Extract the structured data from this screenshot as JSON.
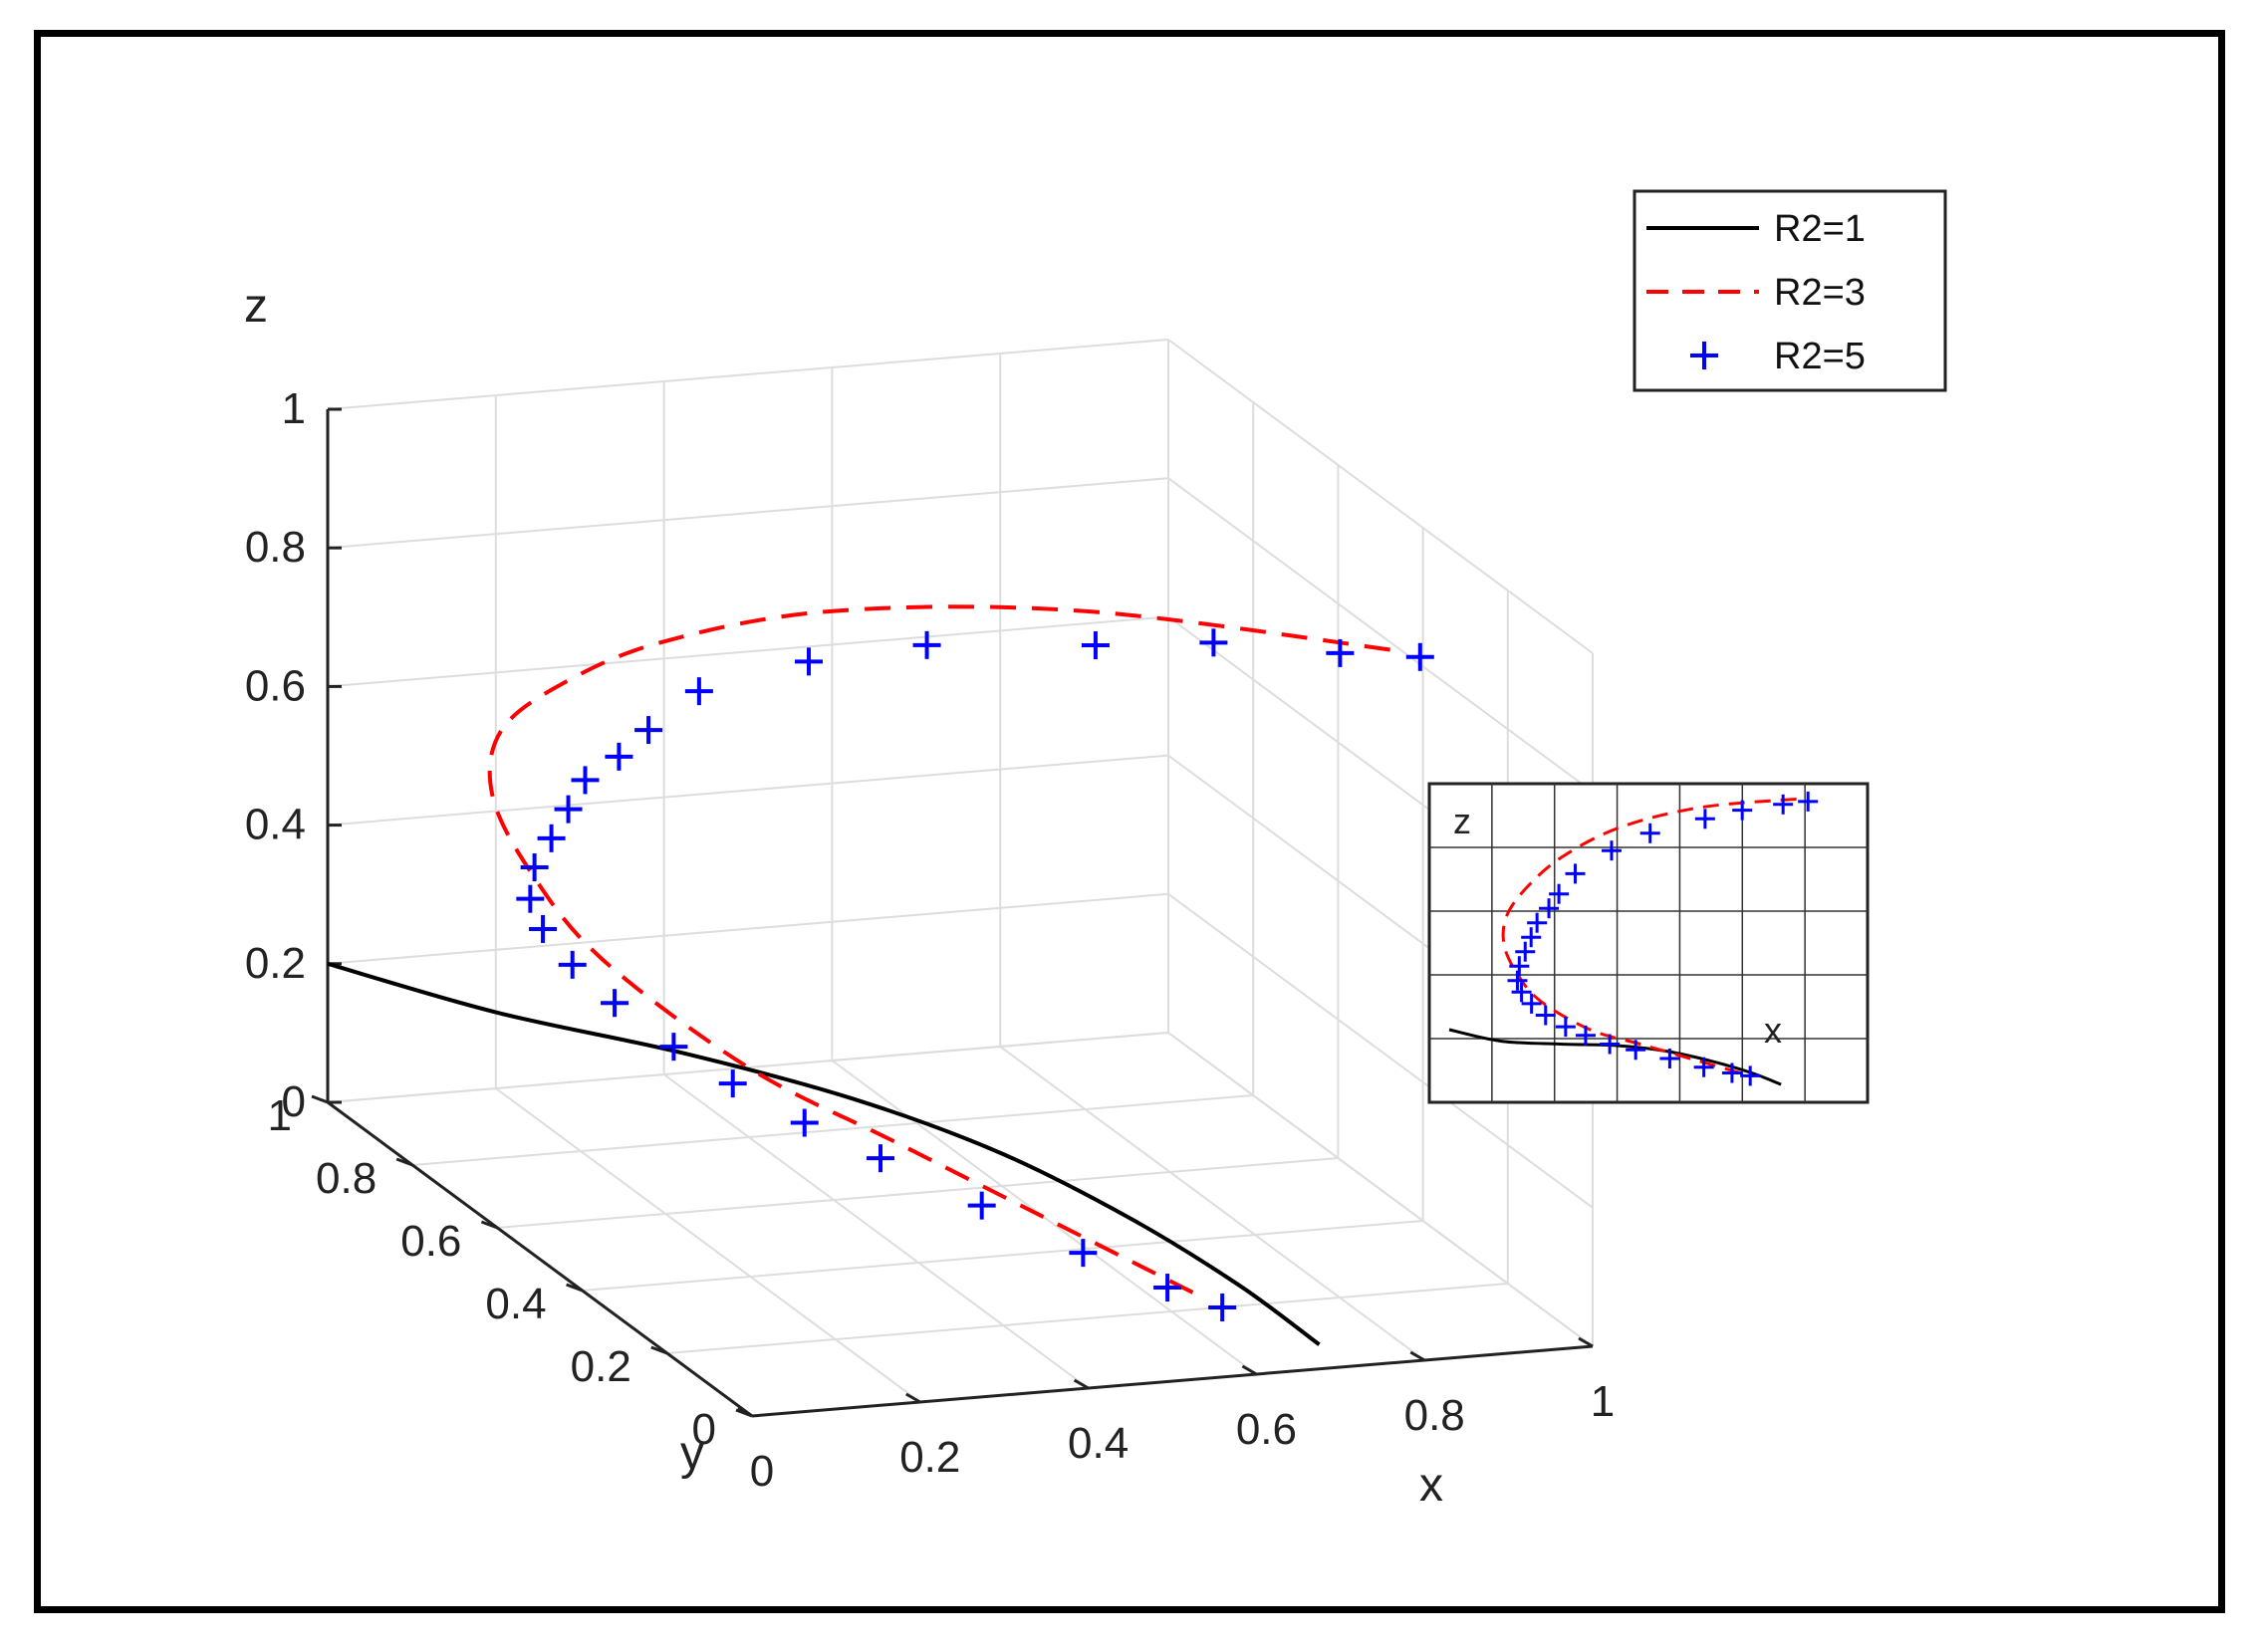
{
  "chart_data": {
    "type": "line3d",
    "title": "",
    "xlabel": "x",
    "ylabel": "y",
    "zlabel": "z",
    "xlim": [
      0,
      1
    ],
    "ylim": [
      0,
      1
    ],
    "zlim": [
      0,
      1
    ],
    "x_ticks": [
      "0",
      "0.2",
      "0.4",
      "0.6",
      "0.8",
      "1"
    ],
    "y_ticks": [
      "0",
      "0.2",
      "0.4",
      "0.6",
      "0.8",
      "1"
    ],
    "z_ticks": [
      "0",
      "0.2",
      "0.4",
      "0.6",
      "0.8",
      "1"
    ],
    "grid": true,
    "legend_position": "top-right",
    "series": [
      {
        "name": "R2=1",
        "style": "solid",
        "color": "#000000",
        "points": [
          [
            0.0,
            1.0,
            0.2
          ],
          [
            0.15,
            0.9,
            0.16
          ],
          [
            0.3,
            0.76,
            0.15
          ],
          [
            0.42,
            0.6,
            0.145
          ],
          [
            0.52,
            0.45,
            0.125
          ],
          [
            0.6,
            0.3,
            0.09
          ],
          [
            0.66,
            0.16,
            0.05
          ],
          [
            0.7,
            0.05,
            0.01
          ]
        ]
      },
      {
        "name": "R2=3",
        "style": "dashed",
        "color": "#ff0000",
        "points": [
          [
            0.6,
            0.15,
            0.05
          ],
          [
            0.5,
            0.3,
            0.1
          ],
          [
            0.4,
            0.45,
            0.15
          ],
          [
            0.3,
            0.6,
            0.2
          ],
          [
            0.2,
            0.75,
            0.3
          ],
          [
            0.15,
            0.82,
            0.4
          ],
          [
            0.12,
            0.85,
            0.5
          ],
          [
            0.12,
            0.83,
            0.6
          ],
          [
            0.15,
            0.75,
            0.7
          ],
          [
            0.22,
            0.65,
            0.8
          ],
          [
            0.35,
            0.5,
            0.9
          ],
          [
            0.55,
            0.3,
            0.97
          ],
          [
            0.8,
            0.05,
            1.0
          ]
        ]
      },
      {
        "name": "R2=5",
        "style": "plus",
        "color": "#0000ff",
        "points": [
          [
            0.62,
            0.12,
            0.04
          ],
          [
            0.58,
            0.17,
            0.05
          ],
          [
            0.52,
            0.25,
            0.07
          ],
          [
            0.45,
            0.35,
            0.1
          ],
          [
            0.38,
            0.45,
            0.13
          ],
          [
            0.33,
            0.53,
            0.15
          ],
          [
            0.28,
            0.6,
            0.18
          ],
          [
            0.24,
            0.66,
            0.21
          ],
          [
            0.2,
            0.72,
            0.25
          ],
          [
            0.17,
            0.76,
            0.29
          ],
          [
            0.15,
            0.79,
            0.33
          ],
          [
            0.14,
            0.8,
            0.37
          ],
          [
            0.14,
            0.79,
            0.42
          ],
          [
            0.15,
            0.77,
            0.47
          ],
          [
            0.16,
            0.75,
            0.52
          ],
          [
            0.17,
            0.73,
            0.57
          ],
          [
            0.19,
            0.69,
            0.62
          ],
          [
            0.21,
            0.66,
            0.67
          ],
          [
            0.25,
            0.62,
            0.74
          ],
          [
            0.33,
            0.52,
            0.82
          ],
          [
            0.42,
            0.42,
            0.88
          ],
          [
            0.55,
            0.28,
            0.93
          ],
          [
            0.65,
            0.2,
            0.96
          ],
          [
            0.75,
            0.1,
            0.98
          ],
          [
            0.82,
            0.05,
            0.99
          ]
        ]
      }
    ],
    "inset": {
      "xlabel": "x",
      "zlabel": "z",
      "description": "x-z projection of all three series"
    }
  },
  "legend": {
    "items": [
      {
        "label": "R2=1",
        "color": "#000000"
      },
      {
        "label": "R2=3",
        "color": "#ff0000"
      },
      {
        "label": "R2=5",
        "color": "#0000ff"
      }
    ]
  }
}
